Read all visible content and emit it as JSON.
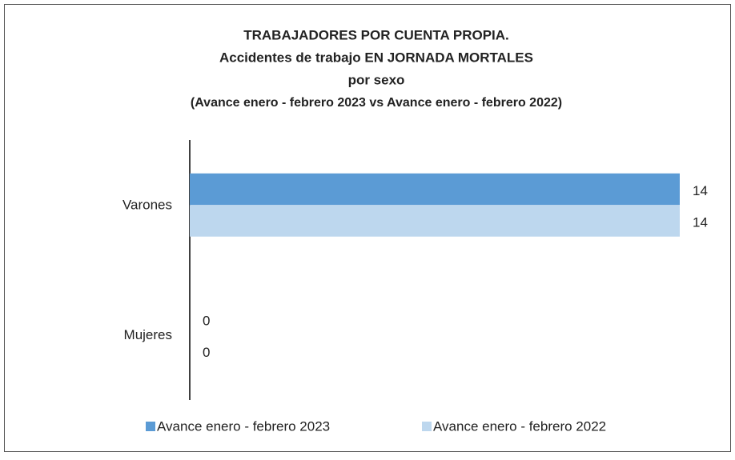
{
  "chart_data": {
    "type": "hbar",
    "title": [
      "TRABAJADORES POR CUENTA PROPIA.",
      "Accidentes de trabajo EN JORNADA MORTALES",
      "por sexo",
      "(Avance enero - febrero 2023 vs Avance enero - febrero 2022)"
    ],
    "categories": [
      "Varones",
      "Mujeres"
    ],
    "series": [
      {
        "name": "Avance enero - febrero 2023",
        "color": "#5b9bd5",
        "values": [
          14,
          0
        ]
      },
      {
        "name": "Avance enero - febrero 2022",
        "color": "#bdd7ee",
        "values": [
          14,
          0
        ]
      }
    ],
    "xlim": [
      0,
      14
    ],
    "legend": "bottom"
  }
}
